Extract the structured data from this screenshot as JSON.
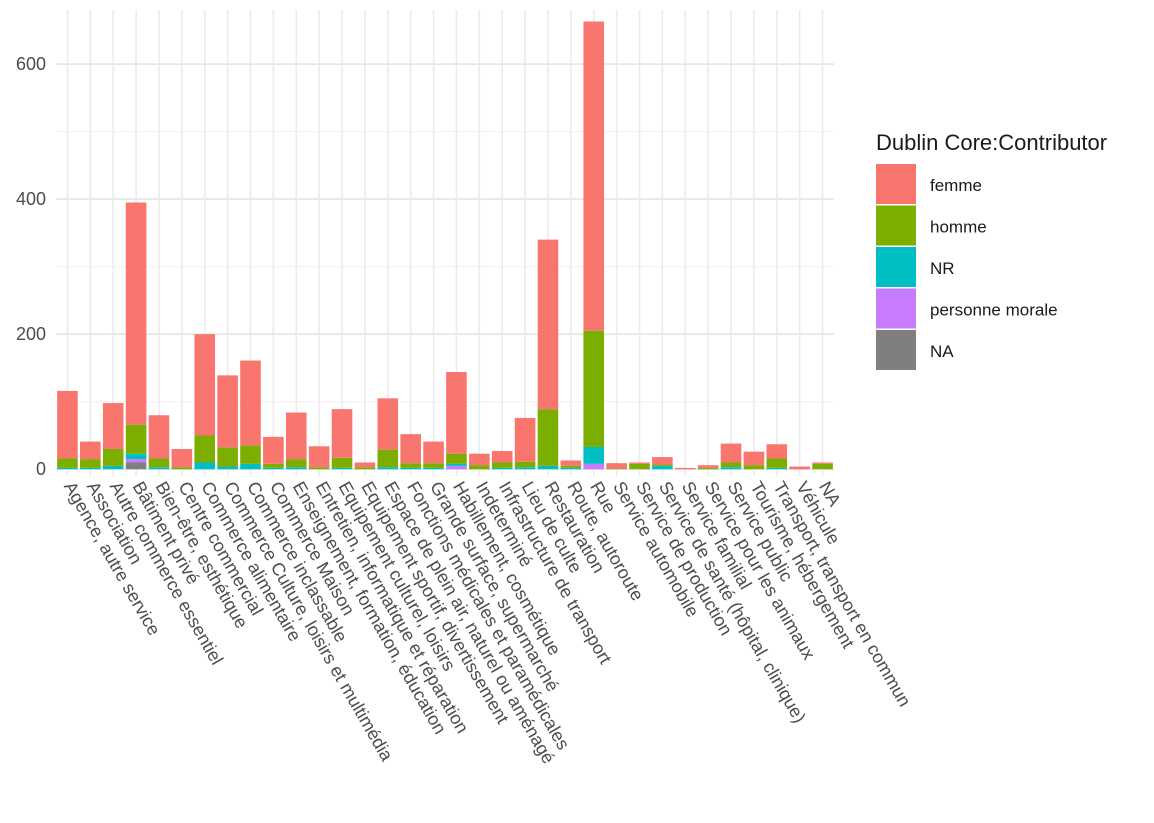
{
  "chart_data": {
    "type": "bar",
    "stacked": true,
    "title": "",
    "xlabel": "",
    "ylabel": "",
    "ylim": [
      -10,
      680
    ],
    "yticks": [
      0,
      200,
      400,
      600
    ],
    "grid": true,
    "legend": {
      "title": "Dublin Core:Contributor",
      "position": "right"
    },
    "categories": [
      "Agence, autre service",
      "Association",
      "Autre commerce essentiel",
      "Bâtiment privé",
      "Bien-être, esthétique",
      "Centre commercial",
      "Commerce alimentaire",
      "Commerce Culture, loisirs et multimédia",
      "Commerce inclassable",
      "Commerce Maison",
      "Enseignement, formation, éducation",
      "Entretien, informatique et réparation",
      "Equipement culturel, loisirs",
      "Equipement sportif, divertissement",
      "Espace de plein air, naturel ou aménagé",
      "Fonctions médicales et paramédicales",
      "Grande surface, supermarché",
      "Habillement, cosmétique",
      "Indeterminé",
      "Infrastructure de transport",
      "Lieu de culte",
      "Restauration",
      "Route, autoroute",
      "Rue",
      "Service automobile",
      "Service de production",
      "Service de santé (hôpital, clinique)",
      "Service familial",
      "Service pour les animaux",
      "Service public",
      "Tourisme, hébergement",
      "Transport, transport en commun",
      "Véhicule",
      "NA"
    ],
    "series": [
      {
        "name": "NA",
        "color": "#7F7F7F",
        "values": [
          0,
          0,
          0,
          10,
          0,
          0,
          0,
          0,
          0,
          0,
          0,
          0,
          0,
          0,
          0,
          0,
          0,
          0,
          0,
          0,
          0,
          0,
          0,
          0,
          0,
          0,
          0,
          0,
          0,
          0,
          0,
          0,
          0,
          0
        ]
      },
      {
        "name": "personne morale",
        "color": "#C77CFF",
        "values": [
          0,
          0,
          0,
          5,
          0,
          0,
          0,
          0,
          0,
          0,
          0,
          0,
          0,
          0,
          0,
          0,
          0,
          5,
          0,
          0,
          0,
          0,
          0,
          8,
          0,
          0,
          0,
          0,
          0,
          0,
          0,
          0,
          0,
          0
        ]
      },
      {
        "name": "NR",
        "color": "#00BFC4",
        "values": [
          2,
          2,
          5,
          8,
          3,
          0,
          10,
          4,
          8,
          2,
          3,
          0,
          2,
          0,
          3,
          2,
          2,
          3,
          0,
          2,
          3,
          5,
          2,
          25,
          0,
          0,
          5,
          0,
          0,
          3,
          0,
          2,
          0,
          0
        ]
      },
      {
        "name": "homme",
        "color": "#7CAE00",
        "values": [
          14,
          13,
          25,
          43,
          13,
          3,
          40,
          28,
          27,
          6,
          12,
          3,
          15,
          3,
          26,
          7,
          7,
          15,
          6,
          8,
          8,
          84,
          3,
          172,
          1,
          8,
          2,
          0,
          2,
          7,
          6,
          14,
          0,
          8
        ]
      },
      {
        "name": "femme",
        "color": "#F8766D",
        "values": [
          100,
          26,
          68,
          329,
          64,
          27,
          150,
          107,
          126,
          40,
          69,
          31,
          72,
          7,
          76,
          43,
          32,
          121,
          17,
          17,
          65,
          251,
          8,
          458,
          8,
          2,
          11,
          2,
          4,
          28,
          20,
          21,
          4,
          2
        ]
      }
    ]
  }
}
